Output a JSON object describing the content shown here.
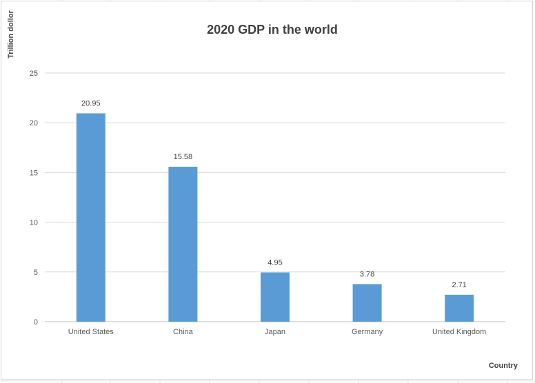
{
  "chart_data": {
    "type": "bar",
    "title": "2020 GDP in the world",
    "xlabel": "Country",
    "ylabel": "Trillion dollor",
    "categories": [
      "United States",
      "China",
      "Japan",
      "Germany",
      "United Kingdom"
    ],
    "values": [
      20.95,
      15.58,
      4.95,
      3.78,
      2.71
    ],
    "data_labels": [
      "20.95",
      "15.58",
      "4.95",
      "3.78",
      "2.71"
    ],
    "ylim": [
      0,
      25
    ],
    "yticks": [
      0,
      5,
      10,
      15,
      20,
      25
    ],
    "grid": true,
    "bar_color": "#5b9bd5",
    "legend": "none"
  }
}
